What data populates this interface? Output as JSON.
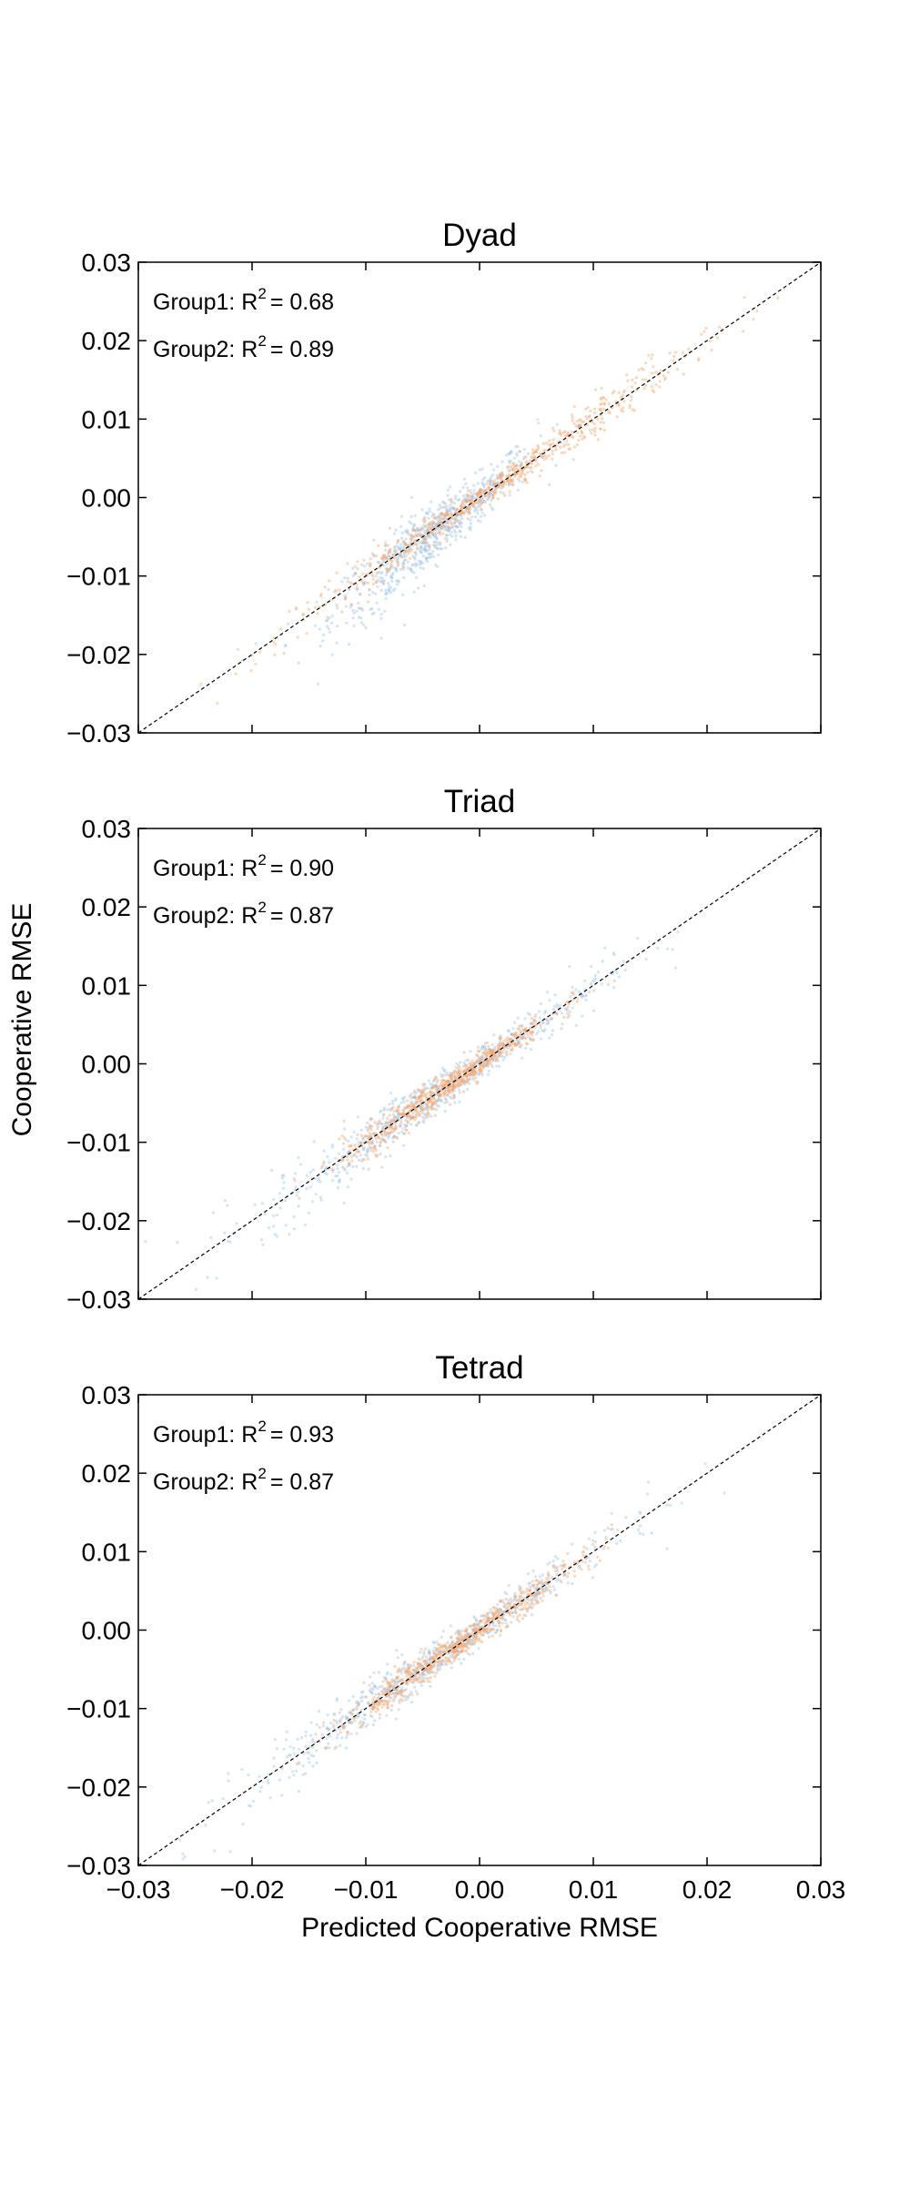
{
  "figure": {
    "ylabel": "Cooperative RMSE",
    "xlabel": "Predicted Cooperative RMSE"
  },
  "chart_data": [
    {
      "type": "scatter",
      "title": "Dyad",
      "xlim": [
        -0.03,
        0.03
      ],
      "ylim": [
        -0.03,
        0.03
      ],
      "ticks": [
        "−0.03",
        "−0.02",
        "−0.01",
        "0.00",
        "0.01",
        "0.02",
        "0.03"
      ],
      "tick_values": [
        -0.03,
        -0.02,
        -0.01,
        0.0,
        0.01,
        0.02,
        0.03
      ],
      "show_xtick_labels": false,
      "annotations": [
        {
          "group": "Group1:",
          "stat": "R",
          "sup": "2",
          "value": "= 0.68"
        },
        {
          "group": "Group2:",
          "stat": "R",
          "sup": "2",
          "value": "= 0.89"
        }
      ],
      "reference_line": {
        "from": [
          -0.03,
          -0.03
        ],
        "to": [
          0.03,
          0.03
        ],
        "style": "dashed",
        "color": "#000000"
      },
      "series": [
        {
          "color": "#9ec3e6",
          "center": -0.004,
          "spread_x": 0.0045,
          "spread_y_ratio": 1.15,
          "noise": 0.0025,
          "r2": 0.68
        },
        {
          "color": "#f4a672",
          "center": 0.001,
          "spread_x": 0.0085,
          "spread_y_ratio": 1.0,
          "noise": 0.0012,
          "r2": 0.89
        }
      ]
    },
    {
      "type": "scatter",
      "title": "Triad",
      "xlim": [
        -0.03,
        0.03
      ],
      "ylim": [
        -0.03,
        0.03
      ],
      "ticks": [
        "−0.03",
        "−0.02",
        "−0.01",
        "0.00",
        "0.01",
        "0.02",
        "0.03"
      ],
      "tick_values": [
        -0.03,
        -0.02,
        -0.01,
        0.0,
        0.01,
        0.02,
        0.03
      ],
      "show_xtick_labels": false,
      "annotations": [
        {
          "group": "Group1:",
          "stat": "R",
          "sup": "2",
          "value": "= 0.90"
        },
        {
          "group": "Group2:",
          "stat": "R",
          "sup": "2",
          "value": "= 0.87"
        }
      ],
      "reference_line": {
        "from": [
          -0.03,
          -0.03
        ],
        "to": [
          0.03,
          0.03
        ],
        "style": "dashed",
        "color": "#000000"
      },
      "series": [
        {
          "color": "#9ec3e6",
          "center": -0.004,
          "spread_x": 0.0075,
          "spread_y_ratio": 1.0,
          "noise": 0.0018,
          "r2": 0.9
        },
        {
          "color": "#f4a672",
          "center": -0.003,
          "spread_x": 0.0045,
          "spread_y_ratio": 1.0,
          "noise": 0.0012,
          "r2": 0.87
        }
      ]
    },
    {
      "type": "scatter",
      "title": "Tetrad",
      "xlim": [
        -0.03,
        0.03
      ],
      "ylim": [
        -0.03,
        0.03
      ],
      "ticks": [
        "−0.03",
        "−0.02",
        "−0.01",
        "0.00",
        "0.01",
        "0.02",
        "0.03"
      ],
      "tick_values": [
        -0.03,
        -0.02,
        -0.01,
        0.0,
        0.01,
        0.02,
        0.03
      ],
      "show_xtick_labels": true,
      "annotations": [
        {
          "group": "Group1:",
          "stat": "R",
          "sup": "2",
          "value": "= 0.93"
        },
        {
          "group": "Group2:",
          "stat": "R",
          "sup": "2",
          "value": "= 0.87"
        }
      ],
      "reference_line": {
        "from": [
          -0.03,
          -0.03
        ],
        "to": [
          0.03,
          0.03
        ],
        "style": "dashed",
        "color": "#000000"
      },
      "series": [
        {
          "color": "#9ec3e6",
          "center": -0.004,
          "spread_x": 0.008,
          "spread_y_ratio": 1.0,
          "noise": 0.0016,
          "r2": 0.93
        },
        {
          "color": "#f4a672",
          "center": -0.002,
          "spread_x": 0.0055,
          "spread_y_ratio": 1.0,
          "noise": 0.0012,
          "r2": 0.87
        }
      ]
    }
  ]
}
